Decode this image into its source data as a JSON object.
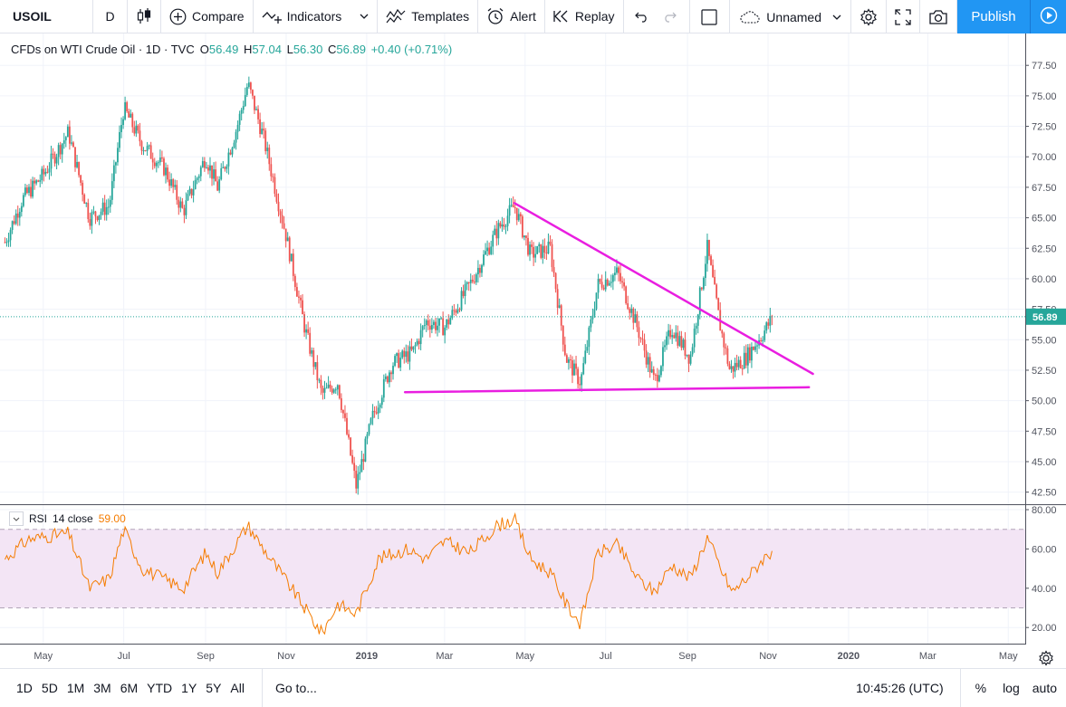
{
  "toolbar": {
    "symbol": "USOIL",
    "interval": "D",
    "compare_label": "Compare",
    "indicators_label": "Indicators",
    "templates_label": "Templates",
    "alert_label": "Alert",
    "replay_label": "Replay",
    "layout_name": "Unnamed",
    "publish_label": "Publish"
  },
  "legend": {
    "title": "CFDs on WTI Crude Oil · 1D · TVC",
    "o_label": "O",
    "o_value": "56.49",
    "h_label": "H",
    "h_value": "57.04",
    "l_label": "L",
    "l_value": "56.30",
    "c_label": "C",
    "c_value": "56.89",
    "change": "+0.40 (+0.71%)"
  },
  "rsi_legend": {
    "name": "RSI",
    "params": "14 close",
    "value": "59.00"
  },
  "bottombar": {
    "ranges": [
      "1D",
      "5D",
      "1M",
      "3M",
      "6M",
      "YTD",
      "1Y",
      "5Y",
      "All"
    ],
    "goto_label": "Go to...",
    "time": "10:45:26 (UTC)",
    "percent_label": "%",
    "log_label": "log",
    "auto_label": "auto"
  },
  "colors": {
    "up": "#26a69a",
    "down": "#ef5350",
    "trendline": "#e91ee0",
    "rsi_line": "#f57c00",
    "rsi_band": "#f3e5f5",
    "accent": "#2196f3"
  },
  "chart_data": [
    {
      "type": "candlestick",
      "symbol": "USOIL",
      "title": "CFDs on WTI Crude Oil · 1D · TVC",
      "x_tick_labels": [
        "May",
        "Jul",
        "Sep",
        "Nov",
        "2019",
        "Mar",
        "May",
        "Jul",
        "Sep",
        "Nov",
        "2020",
        "Mar",
        "May"
      ],
      "y_tick_labels": [
        "42.50",
        "45.00",
        "47.50",
        "50.00",
        "52.50",
        "55.00",
        "57.50",
        "60.00",
        "62.50",
        "65.00",
        "67.50",
        "70.00",
        "72.50",
        "75.00",
        "77.50"
      ],
      "ylim": [
        40.6,
        78.7
      ],
      "last_price": 56.89,
      "anchors": [
        [
          "2018-04-02",
          63.0
        ],
        [
          "2018-04-15",
          66.5
        ],
        [
          "2018-05-01",
          68.5
        ],
        [
          "2018-05-20",
          72.0
        ],
        [
          "2018-06-05",
          65.0
        ],
        [
          "2018-06-20",
          66.0
        ],
        [
          "2018-07-01",
          74.0
        ],
        [
          "2018-07-15",
          71.0
        ],
        [
          "2018-08-01",
          69.0
        ],
        [
          "2018-08-15",
          65.5
        ],
        [
          "2018-09-01",
          70.0
        ],
        [
          "2018-09-10",
          67.5
        ],
        [
          "2018-09-25",
          72.5
        ],
        [
          "2018-10-03",
          76.0
        ],
        [
          "2018-10-15",
          71.5
        ],
        [
          "2018-11-01",
          63.5
        ],
        [
          "2018-11-15",
          56.0
        ],
        [
          "2018-11-28",
          50.5
        ],
        [
          "2018-12-10",
          51.5
        ],
        [
          "2018-12-24",
          43.0
        ],
        [
          "2019-01-05",
          48.5
        ],
        [
          "2019-01-20",
          53.0
        ],
        [
          "2019-02-05",
          54.0
        ],
        [
          "2019-02-15",
          56.5
        ],
        [
          "2019-03-01",
          56.0
        ],
        [
          "2019-03-20",
          59.5
        ],
        [
          "2019-04-10",
          64.0
        ],
        [
          "2019-04-23",
          66.0
        ],
        [
          "2019-05-05",
          62.0
        ],
        [
          "2019-05-20",
          62.5
        ],
        [
          "2019-06-01",
          53.5
        ],
        [
          "2019-06-12",
          51.5
        ],
        [
          "2019-06-25",
          59.5
        ],
        [
          "2019-07-10",
          60.5
        ],
        [
          "2019-07-25",
          56.0
        ],
        [
          "2019-08-07",
          51.5
        ],
        [
          "2019-08-20",
          56.0
        ],
        [
          "2019-09-03",
          53.5
        ],
        [
          "2019-09-16",
          62.5
        ],
        [
          "2019-09-26",
          56.0
        ],
        [
          "2019-10-03",
          52.5
        ],
        [
          "2019-10-15",
          53.5
        ],
        [
          "2019-10-28",
          55.5
        ],
        [
          "2019-11-05",
          56.9
        ]
      ],
      "trendlines": [
        {
          "name": "descending",
          "from": [
            "2019-04-23",
            66.2
          ],
          "to": [
            "2019-12-05",
            52.2
          ]
        },
        {
          "name": "support",
          "from": [
            "2019-01-30",
            50.7
          ],
          "to": [
            "2019-12-02",
            51.1
          ]
        }
      ]
    },
    {
      "type": "line",
      "name": "RSI 14 close",
      "value": 59.0,
      "y_tick_labels": [
        "20.00",
        "40.00",
        "60.00",
        "80.00"
      ],
      "ylim": [
        11,
        81
      ],
      "band": [
        30,
        70
      ],
      "anchors": [
        [
          "2018-04-02",
          55
        ],
        [
          "2018-04-20",
          65
        ],
        [
          "2018-05-20",
          68
        ],
        [
          "2018-06-05",
          40
        ],
        [
          "2018-06-20",
          45
        ],
        [
          "2018-07-01",
          70
        ],
        [
          "2018-07-15",
          50
        ],
        [
          "2018-08-15",
          40
        ],
        [
          "2018-09-01",
          58
        ],
        [
          "2018-09-10",
          48
        ],
        [
          "2018-10-03",
          72
        ],
        [
          "2018-10-20",
          55
        ],
        [
          "2018-11-05",
          40
        ],
        [
          "2018-11-20",
          25
        ],
        [
          "2018-11-28",
          17
        ],
        [
          "2018-12-10",
          32
        ],
        [
          "2018-12-24",
          27
        ],
        [
          "2019-01-10",
          55
        ],
        [
          "2019-02-01",
          60
        ],
        [
          "2019-02-15",
          55
        ],
        [
          "2019-03-01",
          64
        ],
        [
          "2019-03-20",
          58
        ],
        [
          "2019-04-10",
          72
        ],
        [
          "2019-04-23",
          75
        ],
        [
          "2019-05-05",
          55
        ],
        [
          "2019-05-20",
          48
        ],
        [
          "2019-06-01",
          32
        ],
        [
          "2019-06-12",
          22
        ],
        [
          "2019-06-25",
          58
        ],
        [
          "2019-07-10",
          62
        ],
        [
          "2019-07-25",
          45
        ],
        [
          "2019-08-07",
          38
        ],
        [
          "2019-08-20",
          52
        ],
        [
          "2019-09-03",
          45
        ],
        [
          "2019-09-16",
          66
        ],
        [
          "2019-09-26",
          50
        ],
        [
          "2019-10-05",
          38
        ],
        [
          "2019-10-20",
          48
        ],
        [
          "2019-10-28",
          55
        ],
        [
          "2019-11-05",
          59
        ]
      ]
    }
  ]
}
